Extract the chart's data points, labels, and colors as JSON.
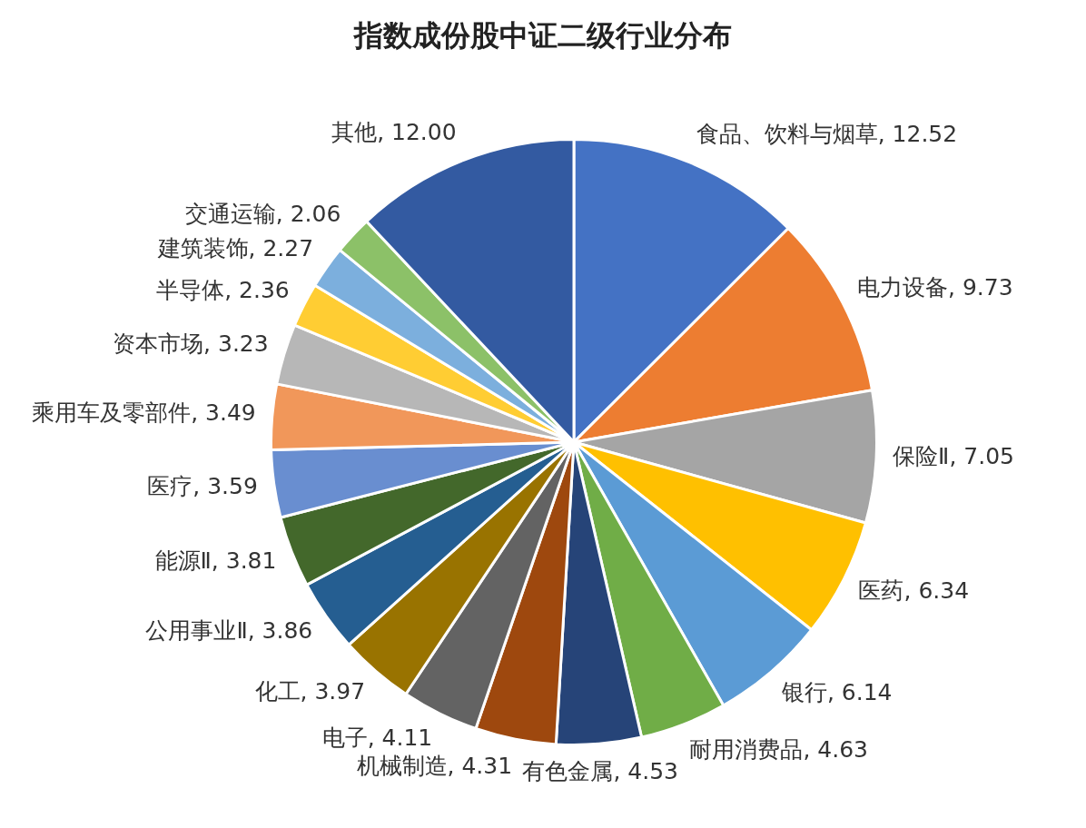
{
  "chart_data": {
    "type": "pie",
    "title": "指数成份股中证二级行业分布",
    "categories": [
      "食品、饮料与烟草",
      "电力设备",
      "保险Ⅱ",
      "医药",
      "银行",
      "耐用消费品",
      "有色金属",
      "机械制造",
      "电子",
      "化工",
      "公用事业Ⅱ",
      "能源Ⅱ",
      "医疗",
      "乘用车及零部件",
      "资本市场",
      "半导体",
      "建筑装饰",
      "交通运输",
      "其他"
    ],
    "values": [
      12.52,
      9.73,
      7.05,
      6.34,
      6.14,
      4.63,
      4.53,
      4.31,
      4.11,
      3.97,
      3.86,
      3.81,
      3.59,
      3.49,
      3.23,
      2.36,
      2.27,
      2.06,
      12.0
    ],
    "value_labels": [
      "12.52",
      "9.73",
      "7.05",
      "6.34",
      "6.14",
      "4.63",
      "4.53",
      "4.31",
      "4.11",
      "3.97",
      "3.86",
      "3.81",
      "3.59",
      "3.49",
      "3.23",
      "2.36",
      "2.27",
      "2.06",
      "12.00"
    ],
    "colors": [
      "#4472c4",
      "#ed7d31",
      "#a5a5a5",
      "#ffc000",
      "#5b9bd5",
      "#70ad47",
      "#264478",
      "#9e480e",
      "#636363",
      "#997300",
      "#255e91",
      "#43682b",
      "#698ed0",
      "#f1975a",
      "#b7b7b7",
      "#ffcd33",
      "#7cafdd",
      "#8cc168",
      "#335aa1"
    ],
    "legend": false
  }
}
